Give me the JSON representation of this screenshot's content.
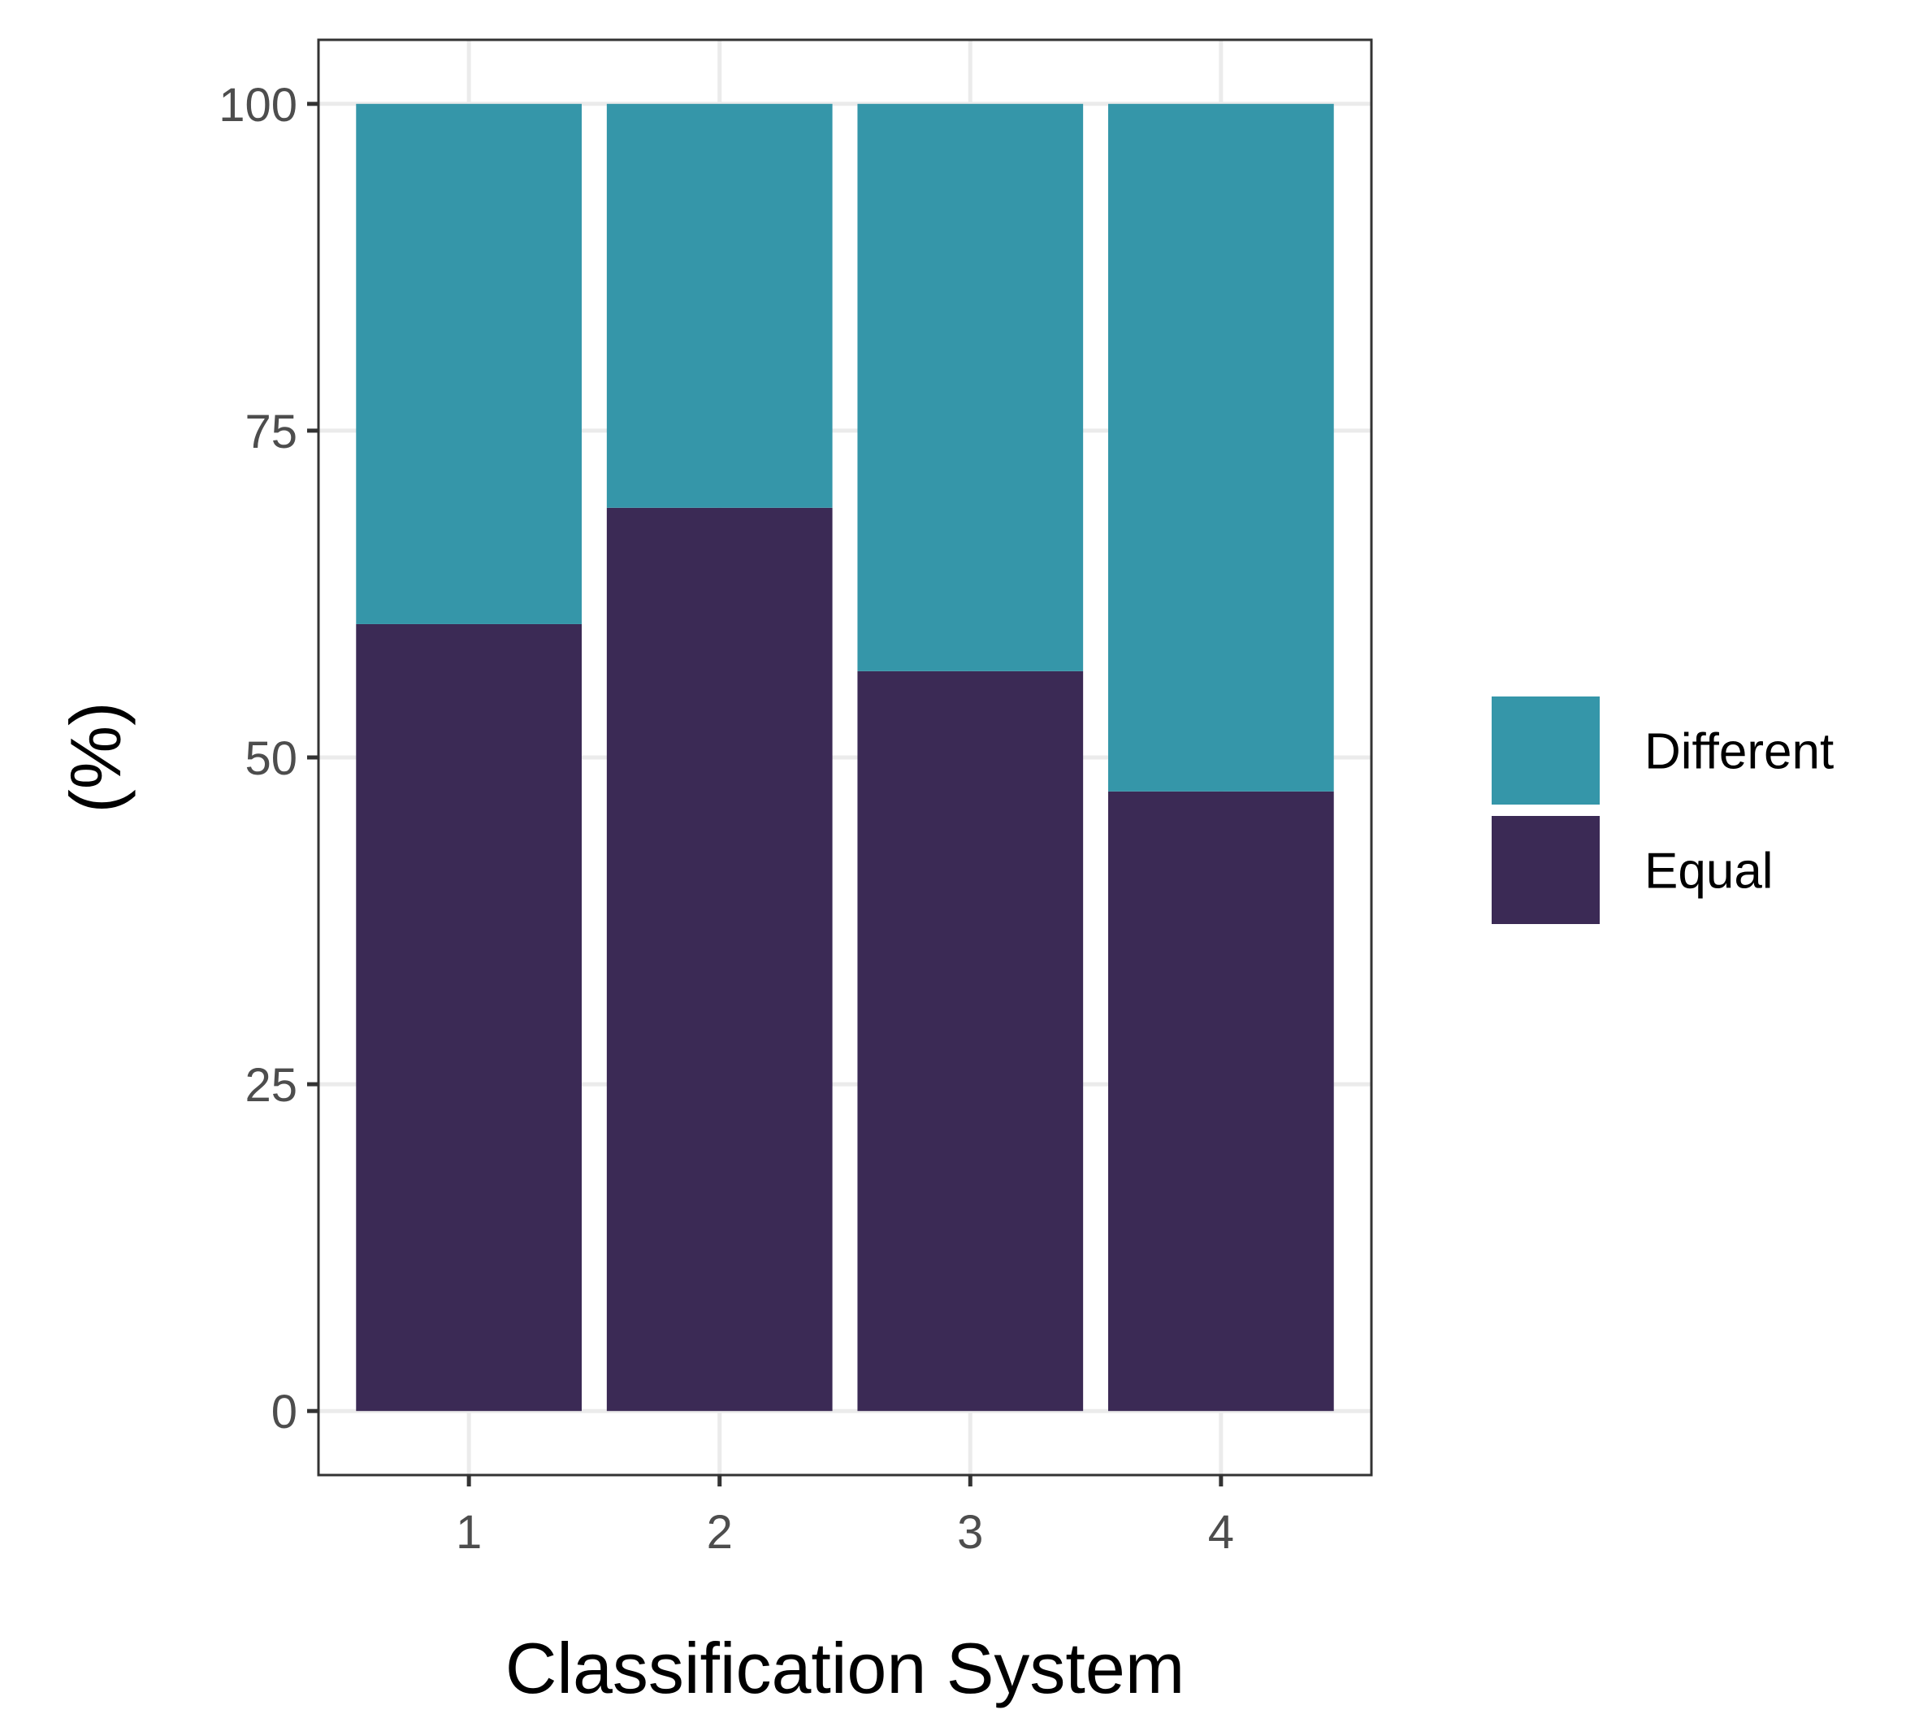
{
  "chart_data": {
    "type": "bar",
    "stacked": true,
    "categories": [
      "1",
      "2",
      "3",
      "4"
    ],
    "series": [
      {
        "name": "Equal",
        "values": [
          60.2,
          69.1,
          56.6,
          47.4
        ]
      },
      {
        "name": "Different",
        "values": [
          39.8,
          30.9,
          43.4,
          52.6
        ]
      }
    ],
    "xlabel": "Classification System",
    "ylabel": "(%)",
    "ylim": [
      -4.9,
      104.9
    ],
    "yticks": [
      0,
      25,
      50,
      75,
      100
    ],
    "ytick_labels": [
      "0",
      "25",
      "50",
      "75",
      "100"
    ],
    "grid": true,
    "legend": {
      "position": "right",
      "entries": [
        "Different",
        "Equal"
      ]
    },
    "colors": {
      "Equal": "#3b2a55",
      "Different": "#3596a9",
      "grid": "#ebebeb",
      "panel_border": "#333333",
      "tick_text": "#4d4d4d"
    }
  }
}
